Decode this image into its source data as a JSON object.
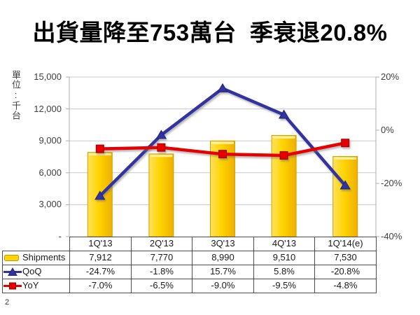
{
  "title": "出貨量降至753萬台  季衰退20.8%",
  "page_number": "2",
  "chart_data": {
    "type": "bar",
    "subtype": "combo-bar-line",
    "categories": [
      "1Q'13",
      "2Q'13",
      "3Q'13",
      "4Q'13",
      "1Q'14(e)"
    ],
    "series": [
      {
        "name": "Shipments",
        "type": "bar",
        "axis": "left",
        "color": "#FFD400",
        "values": [
          7912,
          7770,
          8990,
          9510,
          7530
        ],
        "labels": [
          "7,912",
          "7,770",
          "8,990",
          "9,510",
          "7,530"
        ]
      },
      {
        "name": "QoQ",
        "type": "line",
        "marker": "triangle",
        "axis": "right",
        "color": "#3333A0",
        "values": [
          -24.7,
          -1.8,
          15.7,
          5.8,
          -20.8
        ],
        "labels": [
          "-24.7%",
          "-1.8%",
          "15.7%",
          "5.8%",
          "-20.8%"
        ]
      },
      {
        "name": "YoY",
        "type": "line",
        "marker": "square",
        "axis": "right",
        "color": "#E60000",
        "values": [
          -7.0,
          -6.5,
          -9.0,
          -9.5,
          -4.8
        ],
        "labels": [
          "-7.0%",
          "-6.5%",
          "-9.0%",
          "-9.5%",
          "-4.8%"
        ]
      }
    ],
    "left_axis": {
      "title": "單位:千台",
      "min": 0,
      "max": 15000,
      "labels": [
        "15,000",
        "12,000",
        "9,000",
        "6,000",
        "3,000",
        "-"
      ]
    },
    "right_axis": {
      "min": -40,
      "max": 20,
      "labels": [
        "20%",
        "0%",
        "-20%",
        "-40%"
      ]
    },
    "grid": true,
    "legend_position": "data-table-left"
  }
}
